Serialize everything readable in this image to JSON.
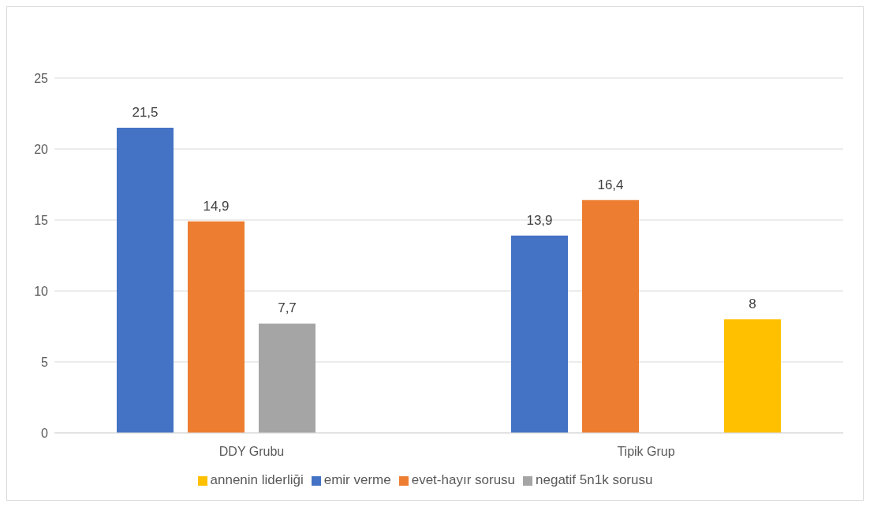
{
  "chart_data": {
    "type": "bar",
    "categories": [
      "DDY Grubu",
      "Tipik Grup"
    ],
    "series": [
      {
        "name": "emir verme",
        "color": "#4472c4",
        "values": [
          21.5,
          13.9
        ],
        "value_labels": [
          "21,5",
          "13,9"
        ]
      },
      {
        "name": "evet-hayır sorusu",
        "color": "#ed7d31",
        "values": [
          14.9,
          16.4
        ],
        "value_labels": [
          "14,9",
          "16,4"
        ]
      },
      {
        "name": "negatif 5n1k sorusu",
        "color": "#a5a5a5",
        "values": [
          7.7,
          null
        ],
        "value_labels": [
          "7,7",
          null
        ]
      },
      {
        "name": "annenin liderliği",
        "color": "#ffc000",
        "values": [
          null,
          8
        ],
        "value_labels": [
          null,
          "8"
        ]
      }
    ],
    "ylim": [
      0,
      25
    ],
    "yticks": [
      0,
      5,
      10,
      15,
      20,
      25
    ],
    "grid": "y",
    "legend": "bottom"
  }
}
